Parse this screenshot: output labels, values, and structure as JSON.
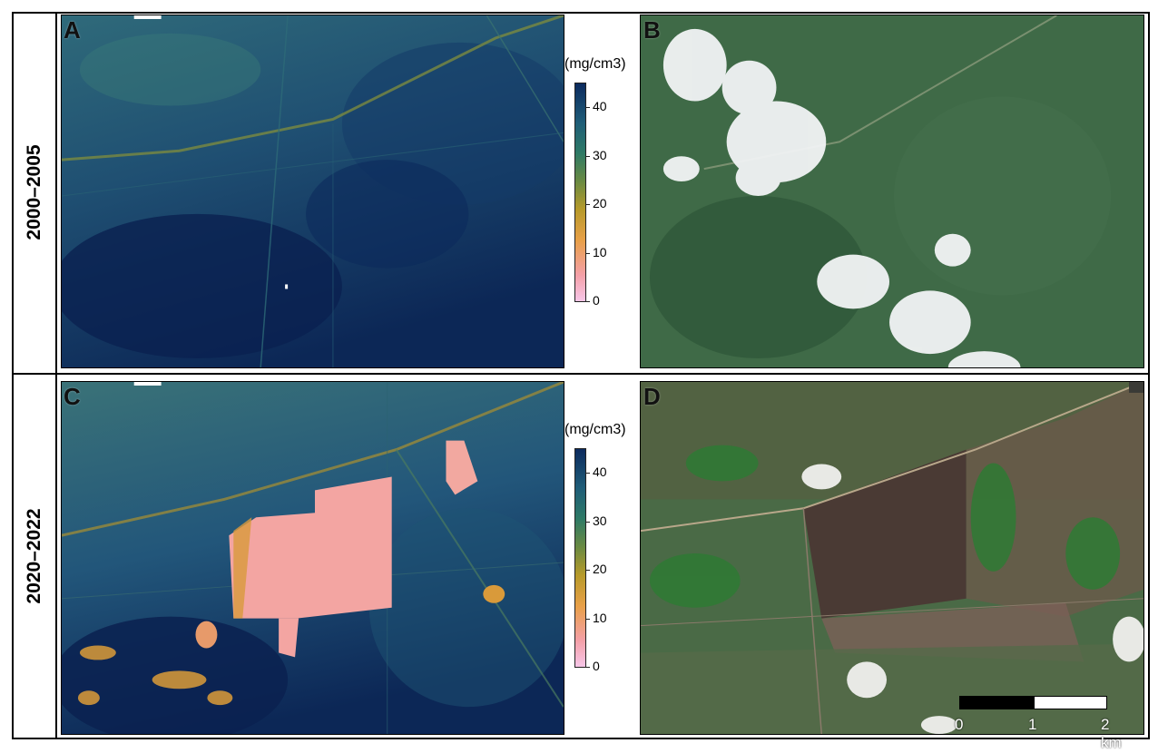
{
  "rows": [
    {
      "label": "2000–2005"
    },
    {
      "label": "2020–2022"
    }
  ],
  "panels": {
    "A": {
      "letter": "A"
    },
    "B": {
      "letter": "B"
    },
    "C": {
      "letter": "C"
    },
    "D": {
      "letter": "D"
    }
  },
  "colorbar": {
    "unit": "(mg/cm3)",
    "ticks": [
      "40",
      "30",
      "20",
      "10",
      "0"
    ]
  },
  "scalebar": {
    "labels": [
      "0",
      "1",
      "2 km"
    ]
  },
  "colors": {
    "deep_navy": "#0d2a5c",
    "teal": "#2a6a78",
    "peach": "#f2a6a0",
    "orange": "#d99a3a",
    "forest_green": "#3f6a45"
  }
}
